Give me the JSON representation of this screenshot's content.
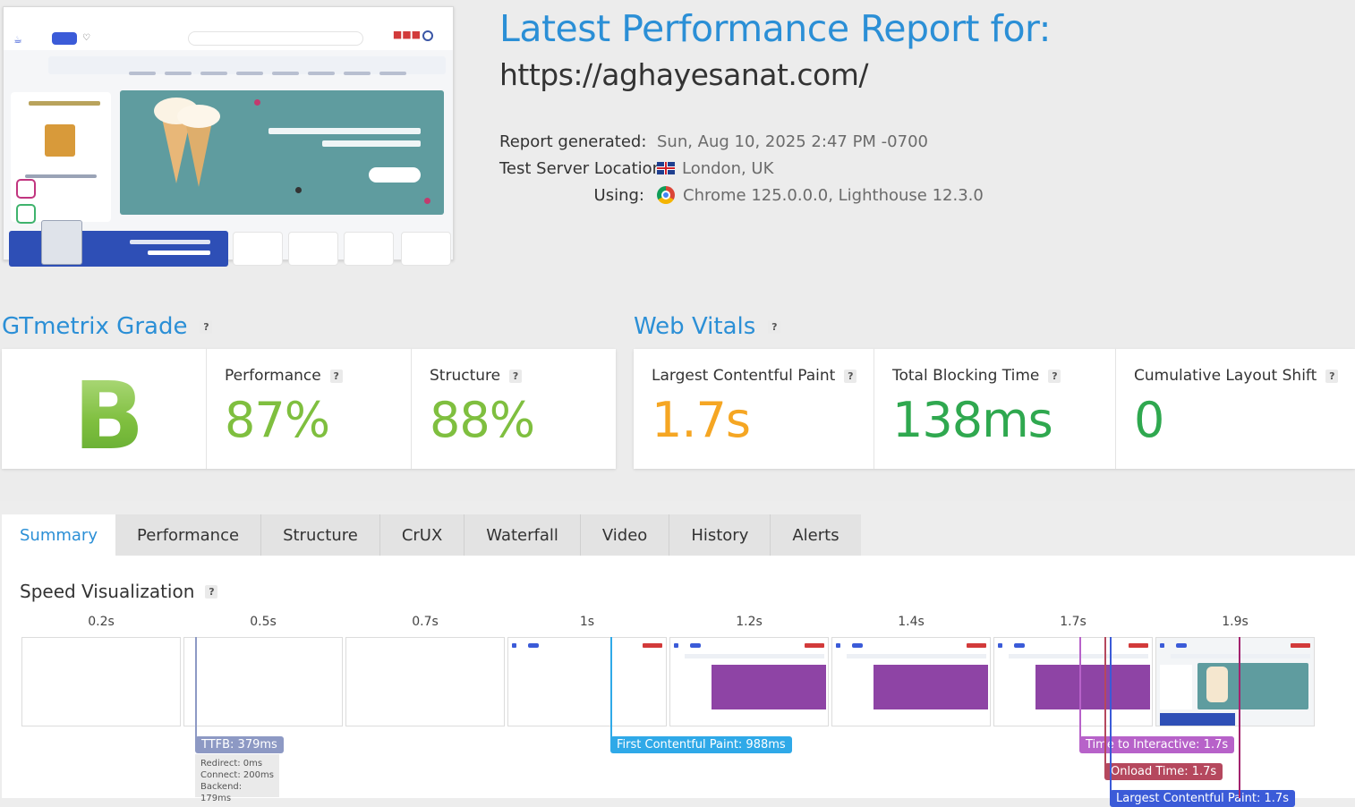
{
  "header": {
    "title": "Latest Performance Report for:",
    "url": "https://aghayesanat.com/",
    "meta": [
      {
        "label": "Report generated:",
        "value": "Sun, Aug 10, 2025 2:47 PM -0700",
        "icon": ""
      },
      {
        "label": "Test Server Location:",
        "value": "London, UK",
        "icon": "uk-flag-icon"
      },
      {
        "label": "Using:",
        "value": "Chrome 125.0.0.0, Lighthouse 12.3.0",
        "icon": "chrome-icon"
      }
    ]
  },
  "grade": {
    "title": "GTmetrix Grade",
    "letter": "B",
    "performance_label": "Performance",
    "performance_value": "87%",
    "structure_label": "Structure",
    "structure_value": "88%",
    "help": "?"
  },
  "vitals": {
    "title": "Web Vitals",
    "lcp_label": "Largest Contentful Paint",
    "lcp_value": "1.7s",
    "tbt_label": "Total Blocking Time",
    "tbt_value": "138ms",
    "cls_label": "Cumulative Layout Shift",
    "cls_value": "0",
    "help": "?"
  },
  "tabs": [
    "Summary",
    "Performance",
    "Structure",
    "CrUX",
    "Waterfall",
    "Video",
    "History",
    "Alerts"
  ],
  "speed": {
    "title": "Speed Visualization",
    "help": "?",
    "frames": [
      "0.2s",
      "0.5s",
      "0.7s",
      "1s",
      "1.2s",
      "1.4s",
      "1.7s",
      "1.9s"
    ],
    "ttfb": "TTFB: 379ms",
    "ttfb_details": [
      "Redirect: 0ms",
      "Connect: 200ms",
      "Backend: 179ms"
    ],
    "fcp": "First Contentful Paint: 988ms",
    "tti": "Time to Interactive: 1.7s",
    "onload": "Onload Time: 1.7s",
    "lcp": "Largest Contentful Paint: 1.7s"
  },
  "colors": {
    "accent": "#2b8fd6",
    "grade_green": "#7fbf3f",
    "lcp_orange": "#f5a623",
    "tbt_green": "#2fa84f",
    "ttfb": "#8d99c4",
    "fcp": "#2fa9e8",
    "tti": "#b762c9",
    "onload": "#b5485e",
    "lcp_marker": "#a3226e"
  }
}
